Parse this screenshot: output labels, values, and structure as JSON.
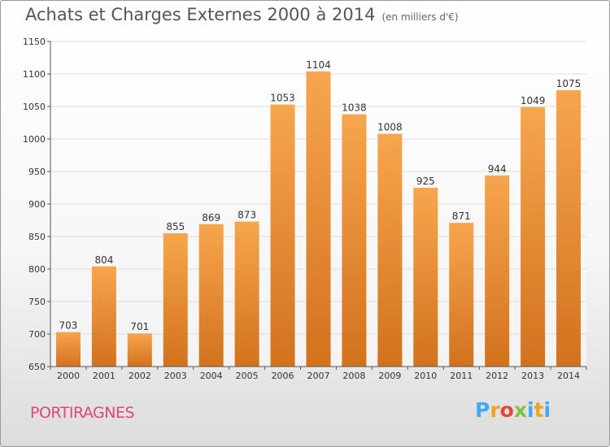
{
  "header": {
    "title": "Achats et Charges Externes 2000 à 2014",
    "subtitle": "(en milliers d'€)"
  },
  "footer": {
    "commune": "PORTIRAGNES",
    "logo_letters": [
      "P",
      "r",
      "o",
      "x",
      "i",
      "t",
      "i"
    ]
  },
  "chart_data": {
    "type": "bar",
    "title": "Achats et Charges Externes 2000 à 2014",
    "subtitle": "(en milliers d'€)",
    "categories": [
      "2000",
      "2001",
      "2002",
      "2003",
      "2004",
      "2005",
      "2006",
      "2007",
      "2008",
      "2009",
      "2010",
      "2011",
      "2012",
      "2013",
      "2014"
    ],
    "values": [
      703,
      804,
      701,
      855,
      869,
      873,
      1053,
      1104,
      1038,
      1008,
      925,
      871,
      944,
      1049,
      1075
    ],
    "ylim": [
      650,
      1150
    ],
    "yticks": [
      650,
      700,
      750,
      800,
      850,
      900,
      950,
      1000,
      1050,
      1100,
      1150
    ],
    "xlabel": "",
    "ylabel": "",
    "grid": true,
    "colors": {
      "bar_top": "#f7a64e",
      "bar_bottom": "#d2721c",
      "grid": "#dddddd",
      "axis": "#555555"
    }
  }
}
